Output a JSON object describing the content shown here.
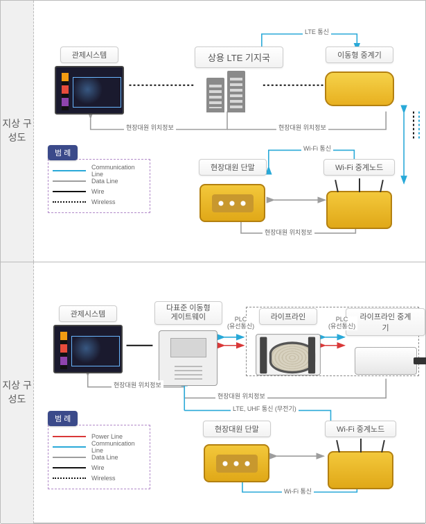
{
  "sections": [
    {
      "side_label": "지상\n구성도",
      "nodes": {
        "control": {
          "title": "관제시스템"
        },
        "lte": {
          "title": "상용 LTE 기지국"
        },
        "mobile_relay": {
          "title": "이동형 중계기"
        },
        "terminal": {
          "title": "현장대원 단말"
        },
        "wifi_node": {
          "title": "Wi-Fi 중계노드"
        }
      },
      "legend": {
        "title": "범 례",
        "items": [
          {
            "label": "Communication Line",
            "style": "solid",
            "color": "#29a9d8"
          },
          {
            "label": "Data Line",
            "style": "solid",
            "color": "#9d9d9d"
          },
          {
            "label": "Wire",
            "style": "solid",
            "color": "#111111"
          },
          {
            "label": "Wireless",
            "style": "dotted",
            "color": "#111111"
          }
        ]
      },
      "edge_labels": {
        "lte_comm": "LTE 통신",
        "loc1": "현장대원 위치정보",
        "loc2": "현장대원 위치정보",
        "wifi_comm": "Wi-Fi 통신",
        "loc3": "현장대원 위치정보"
      }
    },
    {
      "side_label": "지상\n구성도",
      "nodes": {
        "control": {
          "title": "관제시스템"
        },
        "gateway": {
          "title": "다표준 이동형\n게이트웨이"
        },
        "lifeline": {
          "title": "라이프라인"
        },
        "lifeline_relay": {
          "title": "라이프라인 중계기"
        },
        "terminal": {
          "title": "현장대원 단말"
        },
        "wifi_node": {
          "title": "Wi-Fi 중계노드"
        }
      },
      "legend": {
        "title": "범 례",
        "items": [
          {
            "label": "Power Line",
            "style": "solid",
            "color": "#d93838"
          },
          {
            "label": "Communication Line",
            "style": "solid",
            "color": "#29a9d8"
          },
          {
            "label": "Data Line",
            "style": "solid",
            "color": "#9d9d9d"
          },
          {
            "label": "Wire",
            "style": "solid",
            "color": "#111111"
          },
          {
            "label": "Wireless",
            "style": "dotted",
            "color": "#111111"
          }
        ]
      },
      "edge_labels": {
        "plc1": "PLC\n(유선통신)",
        "plc2": "PLC\n(유선통신)",
        "loc1": "현장대원 위치정보",
        "loc2": "현장대원 위치정보",
        "lte_uhf": "LTE, UHF 통신 (무전기)",
        "wifi": "Wi-Fi 통신"
      }
    }
  ]
}
